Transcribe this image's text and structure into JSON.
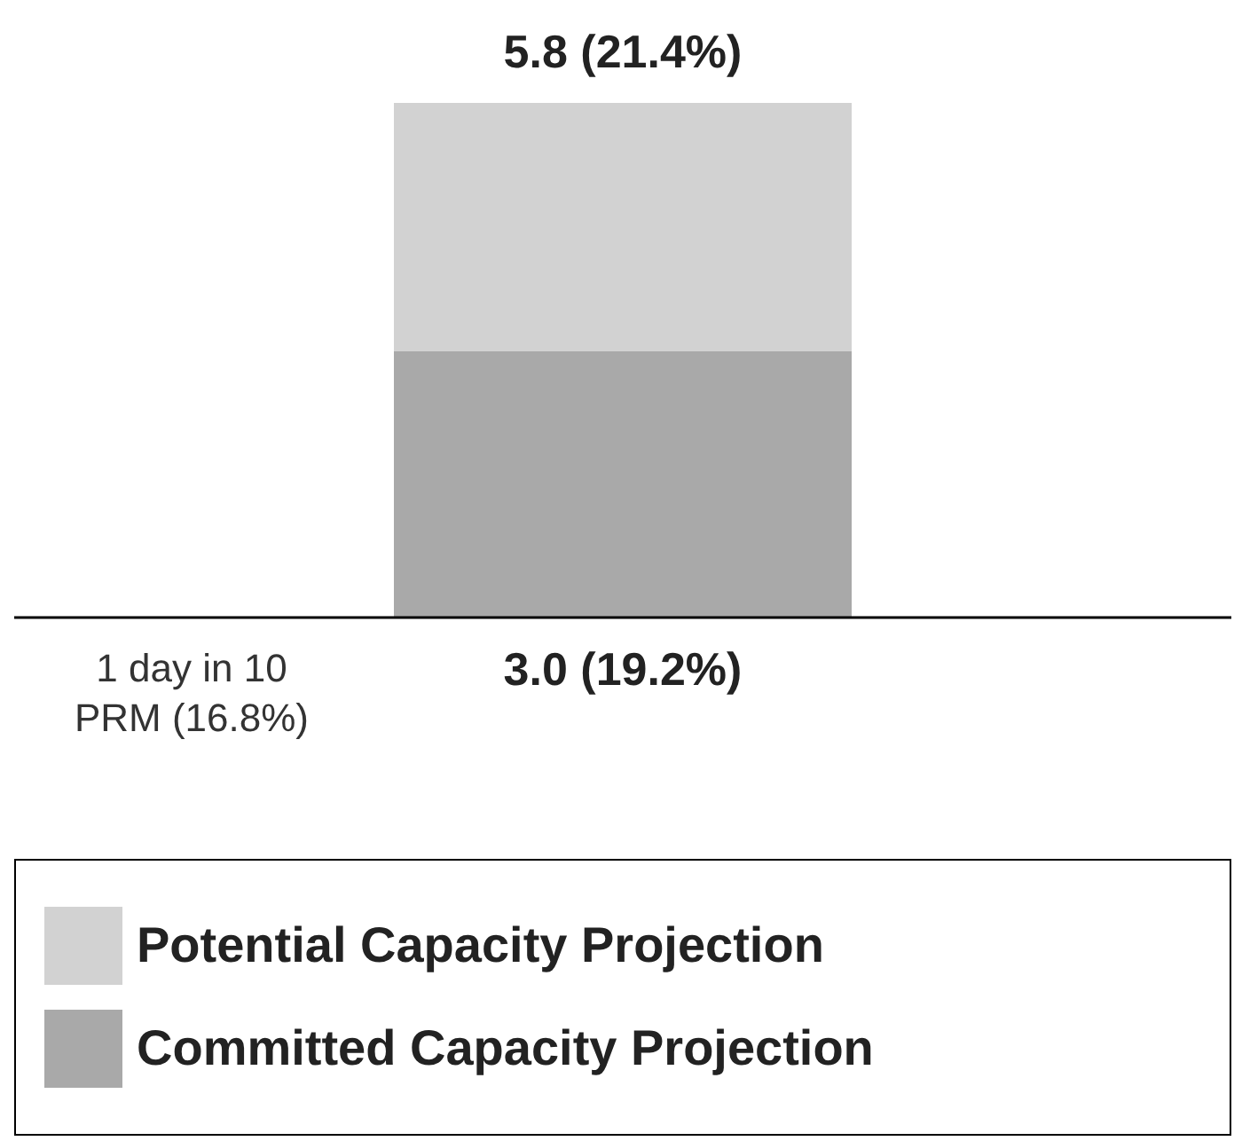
{
  "chart_data": {
    "type": "bar",
    "stacked": true,
    "categories": [
      null
    ],
    "series": [
      {
        "name": "Committed Capacity Projection",
        "color": "#a9a9a9",
        "values": [
          3.0
        ],
        "value_labels": [
          "3.0 (19.2%)"
        ]
      },
      {
        "name": "Potential Capacity Projection",
        "color": "#d2d2d2",
        "values": [
          2.8
        ]
      }
    ],
    "totals": [
      "5.8 (21.4%)"
    ],
    "ref_lines": [
      {
        "axis": "y",
        "value": 0,
        "label": "1 day in 10\nPRM (16.8%)",
        "color": "#000000"
      }
    ],
    "legend": "bottom"
  }
}
